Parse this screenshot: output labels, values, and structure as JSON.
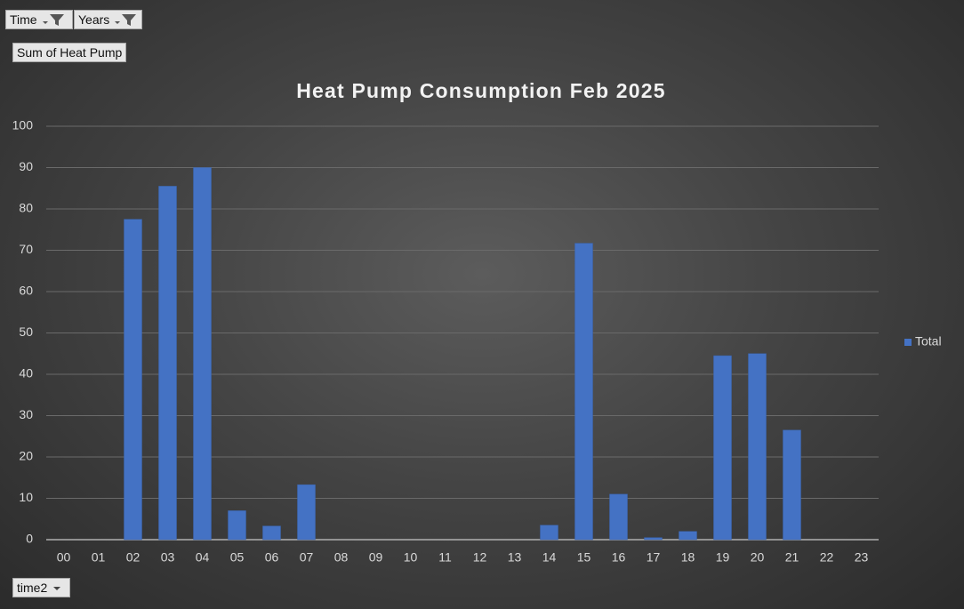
{
  "pivot_buttons": {
    "filters": [
      "Time",
      "Years"
    ],
    "value_field": "Sum of Heat Pump",
    "axis_field": "time2"
  },
  "chart_data": {
    "type": "bar",
    "title": "Heat Pump Consumption Feb 2025",
    "categories": [
      "00",
      "01",
      "02",
      "03",
      "04",
      "05",
      "06",
      "07",
      "08",
      "09",
      "10",
      "11",
      "12",
      "13",
      "14",
      "15",
      "16",
      "17",
      "18",
      "19",
      "20",
      "21",
      "22",
      "23"
    ],
    "series": [
      {
        "name": "Total",
        "color": "#4472c4",
        "values": [
          null,
          null,
          77.5,
          85.5,
          90,
          7,
          3.3,
          13.3,
          null,
          null,
          null,
          null,
          null,
          null,
          3.5,
          71.7,
          11,
          0.5,
          2,
          44.5,
          45,
          26.5,
          null,
          null
        ]
      }
    ],
    "ylim": [
      0,
      100
    ],
    "yticks": [
      0,
      10,
      20,
      30,
      40,
      50,
      60,
      70,
      80,
      90,
      100
    ],
    "grid": true,
    "legend": "right"
  }
}
